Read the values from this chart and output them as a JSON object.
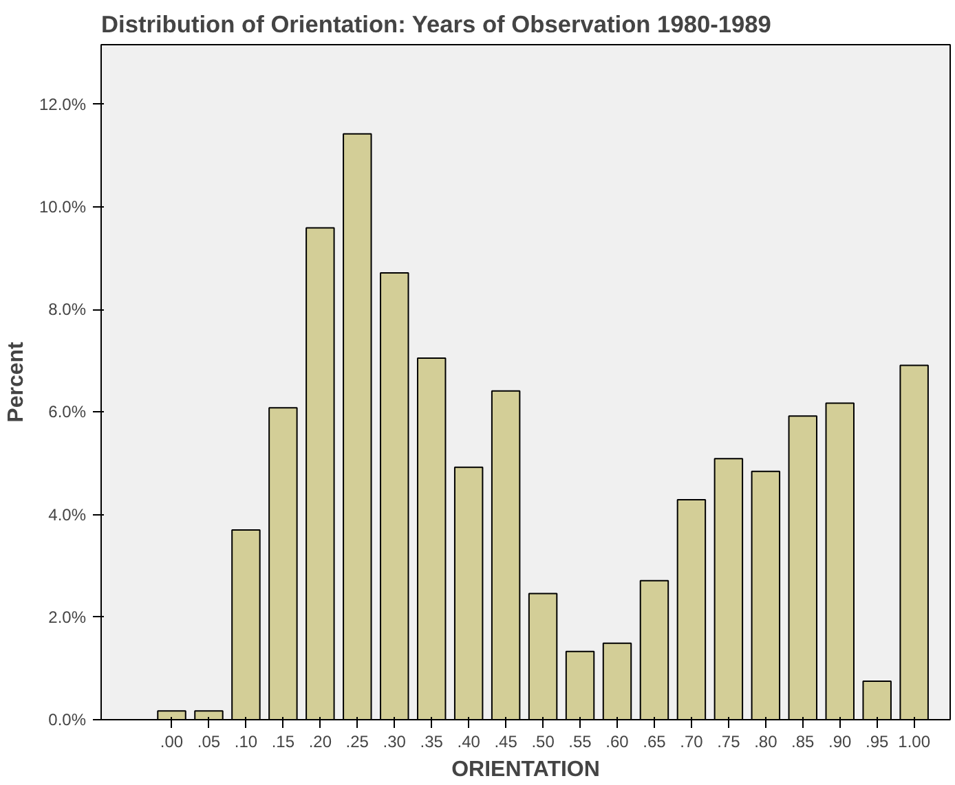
{
  "chart_data": {
    "type": "bar",
    "title": "Distribution of Orientation: Years of Observation 1980-1989",
    "xlabel": "ORIENTATION",
    "ylabel": "Percent",
    "categories": [
      ".00",
      ".05",
      ".10",
      ".15",
      ".20",
      ".25",
      ".30",
      ".35",
      ".40",
      ".45",
      ".50",
      ".55",
      ".60",
      ".65",
      ".70",
      ".75",
      ".80",
      ".85",
      ".90",
      ".95",
      "1.00"
    ],
    "values": [
      0.17,
      0.17,
      3.7,
      6.08,
      9.59,
      11.42,
      8.71,
      7.05,
      4.92,
      6.41,
      2.46,
      1.33,
      1.49,
      2.71,
      4.29,
      5.09,
      4.84,
      5.92,
      6.17,
      0.75,
      6.91
    ],
    "color": "#d3ce97",
    "ylim": [
      0,
      13.16
    ],
    "yticks": [
      {
        "value": 0,
        "label": "0.0%"
      },
      {
        "value": 2,
        "label": "2.0%"
      },
      {
        "value": 4,
        "label": "4.0%"
      },
      {
        "value": 6,
        "label": "6.0%"
      },
      {
        "value": 8,
        "label": "8.0%"
      },
      {
        "value": 10,
        "label": "10.0%"
      },
      {
        "value": 12,
        "label": "12.0%"
      }
    ],
    "grid": false
  }
}
